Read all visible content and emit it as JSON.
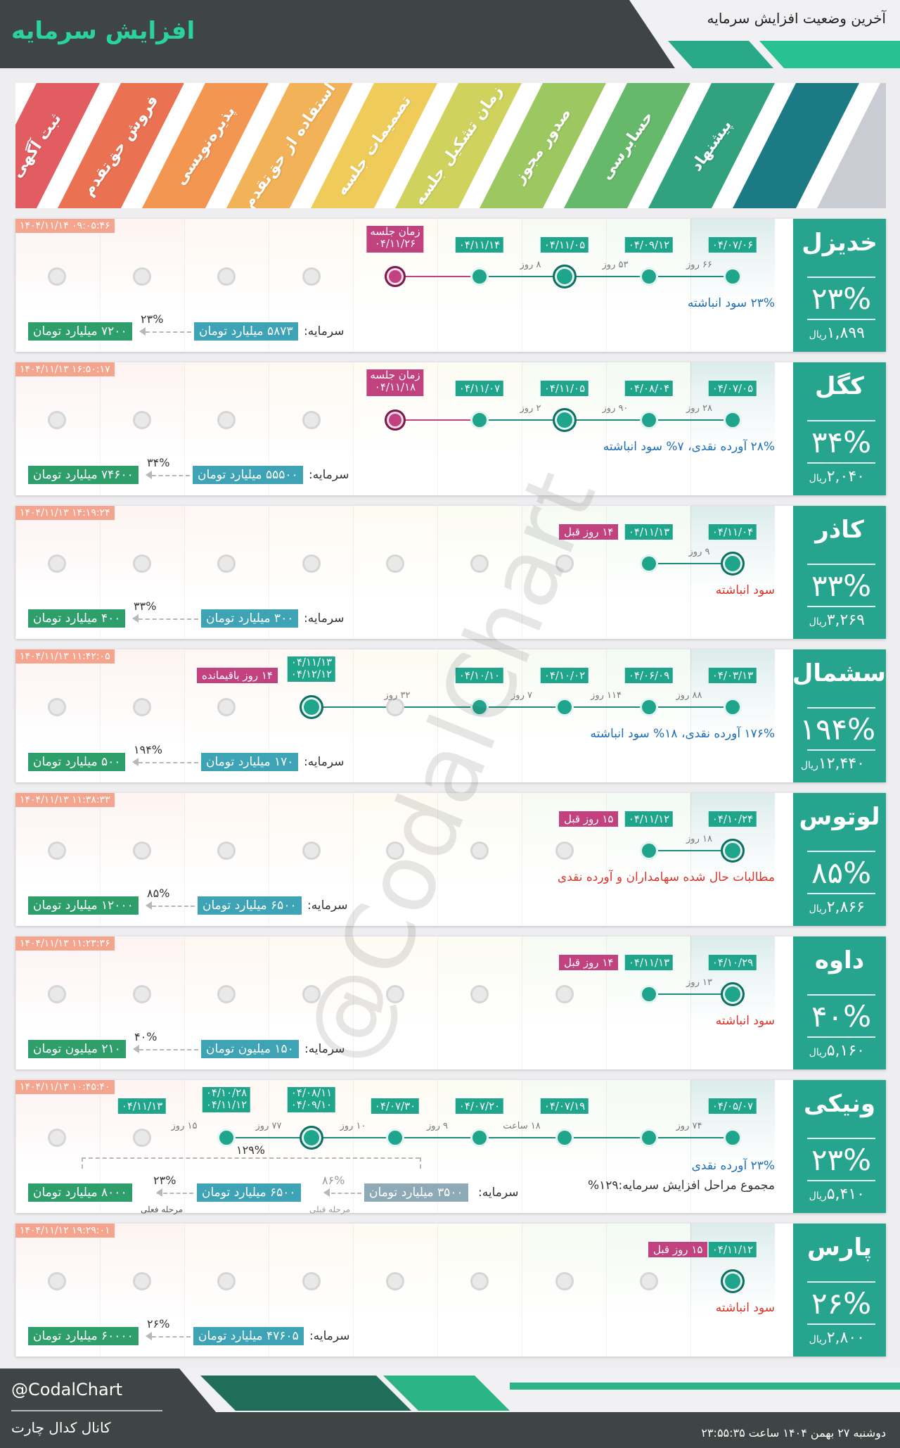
{
  "header": {
    "title": "افزایش سرمایه",
    "subtitle": "آخرین وضعیت افزایش سرمایه"
  },
  "stages": [
    "ثبت آگهی",
    "فروش حق‌تقدم",
    "پذیره‌نویسی",
    "استفاده از حق‌تقدم",
    "تصمیمات جلسه",
    "زمان تشکیل جلسه",
    "صدور مجوز",
    "حسابرسی",
    "پیشنهاد"
  ],
  "stage_colors": [
    "#e25d61",
    "#ea7253",
    "#f29652",
    "#f2b257",
    "#efcc5a",
    "#cfd35e",
    "#9dc861",
    "#66b86b",
    "#31a17e",
    "#1c7a85"
  ],
  "labels": {
    "capital": "سرمایه:",
    "prev_stage": "مرحله قبلی",
    "curr_stage": "مرحله فعلی",
    "rial": "ریال"
  },
  "watermark": "@CodalChart",
  "companies": [
    {
      "name": "خدیزل",
      "pct": "۲۳%",
      "price": "۱,۸۹۹",
      "ts": "۱۴۰۴/۱۱/۱۴ ۰۹:۰۵:۴۶",
      "dates": [
        "۰۴/۰۷/۰۶",
        "۰۴/۰۹/۱۲",
        "۰۴/۱۱/۰۵",
        "۰۴/۱۱/۱۴"
      ],
      "days": [
        "۶۶ روز",
        "۵۳ روز",
        "۸ روز"
      ],
      "meeting": {
        "t": "زمان جلسه",
        "d": "۰۴/۱۱/۲۶"
      },
      "desc": "۲۳% سود انباشته",
      "cap_from": "۵۸۷۳ میلیارد تومان",
      "cap_to": "۷۲۰۰ میلیارد تومان",
      "cap_pct": "۲۳%"
    },
    {
      "name": "کگل",
      "pct": "۳۴%",
      "price": "۲,۰۴۰",
      "ts": "۱۴۰۴/۱۱/۱۳ ۱۶:۵۰:۱۷",
      "dates": [
        "۰۴/۰۷/۰۵",
        "۰۴/۰۸/۰۴",
        "۰۴/۱۱/۰۵",
        "۰۴/۱۱/۰۷"
      ],
      "days": [
        "۲۸ روز",
        "۹۰ روز",
        "۲ روز"
      ],
      "meeting": {
        "t": "زمان جلسه",
        "d": "۰۴/۱۱/۱۸"
      },
      "desc": "۲۸% آورده نقدی، ۷% سود انباشته",
      "cap_from": "۵۵۵۰۰ میلیارد تومان",
      "cap_to": "۷۴۶۰۰ میلیارد تومان",
      "cap_pct": "۳۴%"
    },
    {
      "name": "کاذر",
      "pct": "۳۳%",
      "price": "۳,۲۶۹",
      "ts": "۱۴۰۴/۱۱/۱۳ ۱۴:۱۹:۲۴",
      "dates": [
        "۰۴/۱۱/۰۴",
        "۰۴/۱۱/۱۳"
      ],
      "days": [
        "۹ روز"
      ],
      "ago": "۱۴ روز قبل",
      "desc": "سود انباشته",
      "cap_from": "۳۰۰ میلیارد تومان",
      "cap_to": "۴۰۰ میلیارد تومان",
      "cap_pct": "۳۳%"
    },
    {
      "name": "سشمال",
      "pct": "۱۹۴%",
      "price": "۱۲,۴۴۰",
      "ts": "۱۴۰۴/۱۱/۱۳ ۱۱:۴۲:۰۵",
      "dates": [
        "۰۴/۰۳/۱۳",
        "۰۴/۰۶/۰۹",
        "۰۴/۱۰/۰۲",
        "۰۴/۱۰/۱۰",
        "۰۴/۱۱/۱۳",
        "۰۴/۱۲/۱۲"
      ],
      "days": [
        "۸۸ روز",
        "۱۱۴ روز",
        "۷ روز",
        "۳۲ روز"
      ],
      "remain": "۱۴ روز باقیمانده",
      "desc": "۱۷۶% آورده نقدی، ۱۸% سود انباشته",
      "cap_from": "۱۷۰ میلیارد تومان",
      "cap_to": "۵۰۰ میلیارد تومان",
      "cap_pct": "۱۹۴%"
    },
    {
      "name": "لوتوس",
      "pct": "۸۵%",
      "price": "۲,۸۶۶",
      "ts": "۱۴۰۴/۱۱/۱۳ ۱۱:۳۸:۳۳",
      "dates": [
        "۰۴/۱۰/۲۴",
        "۰۴/۱۱/۱۲"
      ],
      "days": [
        "۱۸ روز"
      ],
      "ago": "۱۵ روز قبل",
      "desc": "مطالبات حال شده سهامداران و آورده نقدی",
      "cap_from": "۶۵۰۰ میلیارد تومان",
      "cap_to": "۱۲۰۰۰ میلیارد تومان",
      "cap_pct": "۸۵%"
    },
    {
      "name": "داوه",
      "pct": "۴۰%",
      "price": "۵,۱۶۰",
      "ts": "۱۴۰۴/۱۱/۱۳ ۱۱:۲۳:۳۶",
      "dates": [
        "۰۴/۱۰/۲۹",
        "۰۴/۱۱/۱۳"
      ],
      "days": [
        "۱۳ روز"
      ],
      "ago": "۱۴ روز قبل",
      "desc": "سود انباشته",
      "cap_from": "۱۵۰ میلیون تومان",
      "cap_to": "۲۱۰ میلیون تومان",
      "cap_pct": "۴۰%"
    },
    {
      "name": "ونیکی",
      "pct": "۲۳%",
      "price": "۵,۴۱۰",
      "ts": "۱۴۰۴/۱۱/۱۳ ۱۰:۴۵:۴۰",
      "dates": [
        "۰۴/۰۵/۰۷",
        "۰۴/۰۷/۱۹",
        "۰۴/۰۷/۲۰",
        "۰۴/۰۷/۳۰",
        "۰۴/۰۸/۱۱",
        "۰۴/۰۹/۱۰",
        "۰۴/۱۰/۲۸",
        "۰۴/۱۱/۱۲",
        "۰۴/۱۱/۱۳"
      ],
      "days": [
        "۷۴ روز",
        "۱۸ ساعت",
        "۹ روز",
        "۱۰ روز",
        "۷۷ روز",
        "۱۵ روز"
      ],
      "desc": "۲۳% آورده نقدی",
      "desc2": "مجموع مراحل افزایش سرمایه:۱۲۹%",
      "total_pct": "۱۲۹%",
      "prev_from": "۳۵۰۰ میلیارد تومان",
      "prev_pct": "۸۶%",
      "cap_from": "۶۵۰۰ میلیارد تومان",
      "cap_to": "۸۰۰۰ میلیارد تومان",
      "cap_pct": "۲۳%"
    },
    {
      "name": "پارس",
      "pct": "۲۶%",
      "price": "۲,۸۰۰",
      "ts": "۱۴۰۴/۱۱/۱۲ ۱۹:۲۹:۰۱",
      "dates": [
        "۰۴/۱۱/۱۲"
      ],
      "days": [],
      "ago": "۱۵ روز قبل",
      "desc": "سود انباشته",
      "cap_from": "۴۷۶۰۵ میلیارد تومان",
      "cap_to": "۶۰۰۰۰ میلیارد تومان",
      "cap_pct": "۲۶%"
    }
  ],
  "footer": {
    "handle": "@CodalChart",
    "channel": "کانال کدال چارت",
    "date": "دوشنبه ۲۷ بهمن ۱۴۰۴ ساعت ۲۳:۵۵:۳۵"
  }
}
